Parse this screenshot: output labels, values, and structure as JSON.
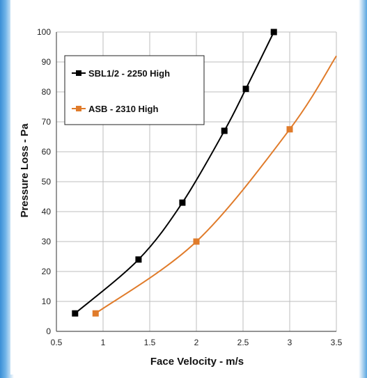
{
  "chart_data": {
    "type": "line",
    "title": "",
    "xlabel": "Face Velocity - m/s",
    "ylabel": "Pressure Loss - Pa",
    "xlim": [
      0.5,
      3.5
    ],
    "ylim": [
      0,
      100
    ],
    "x_ticks": [
      "0.5",
      "1",
      "1.5",
      "2",
      "2.5",
      "3",
      "3.5"
    ],
    "y_ticks": [
      "0",
      "10",
      "20",
      "30",
      "40",
      "50",
      "60",
      "70",
      "80",
      "90",
      "100"
    ],
    "grid": true,
    "legend_position": "top-left",
    "series": [
      {
        "name": "SBL1/2 - 2250 High",
        "color": "#000000",
        "marker": "square",
        "points": [
          [
            0.7,
            6
          ],
          [
            1.38,
            24
          ],
          [
            1.85,
            43
          ],
          [
            2.3,
            67
          ],
          [
            2.53,
            81
          ],
          [
            2.83,
            100
          ]
        ]
      },
      {
        "name": "ASB - 2310 High",
        "color": "#e07b2a",
        "marker": "square",
        "points": [
          [
            0.92,
            6
          ],
          [
            2.0,
            30
          ],
          [
            3.0,
            67.5
          ]
        ],
        "curve_extends_to": [
          3.5,
          92
        ]
      }
    ]
  }
}
